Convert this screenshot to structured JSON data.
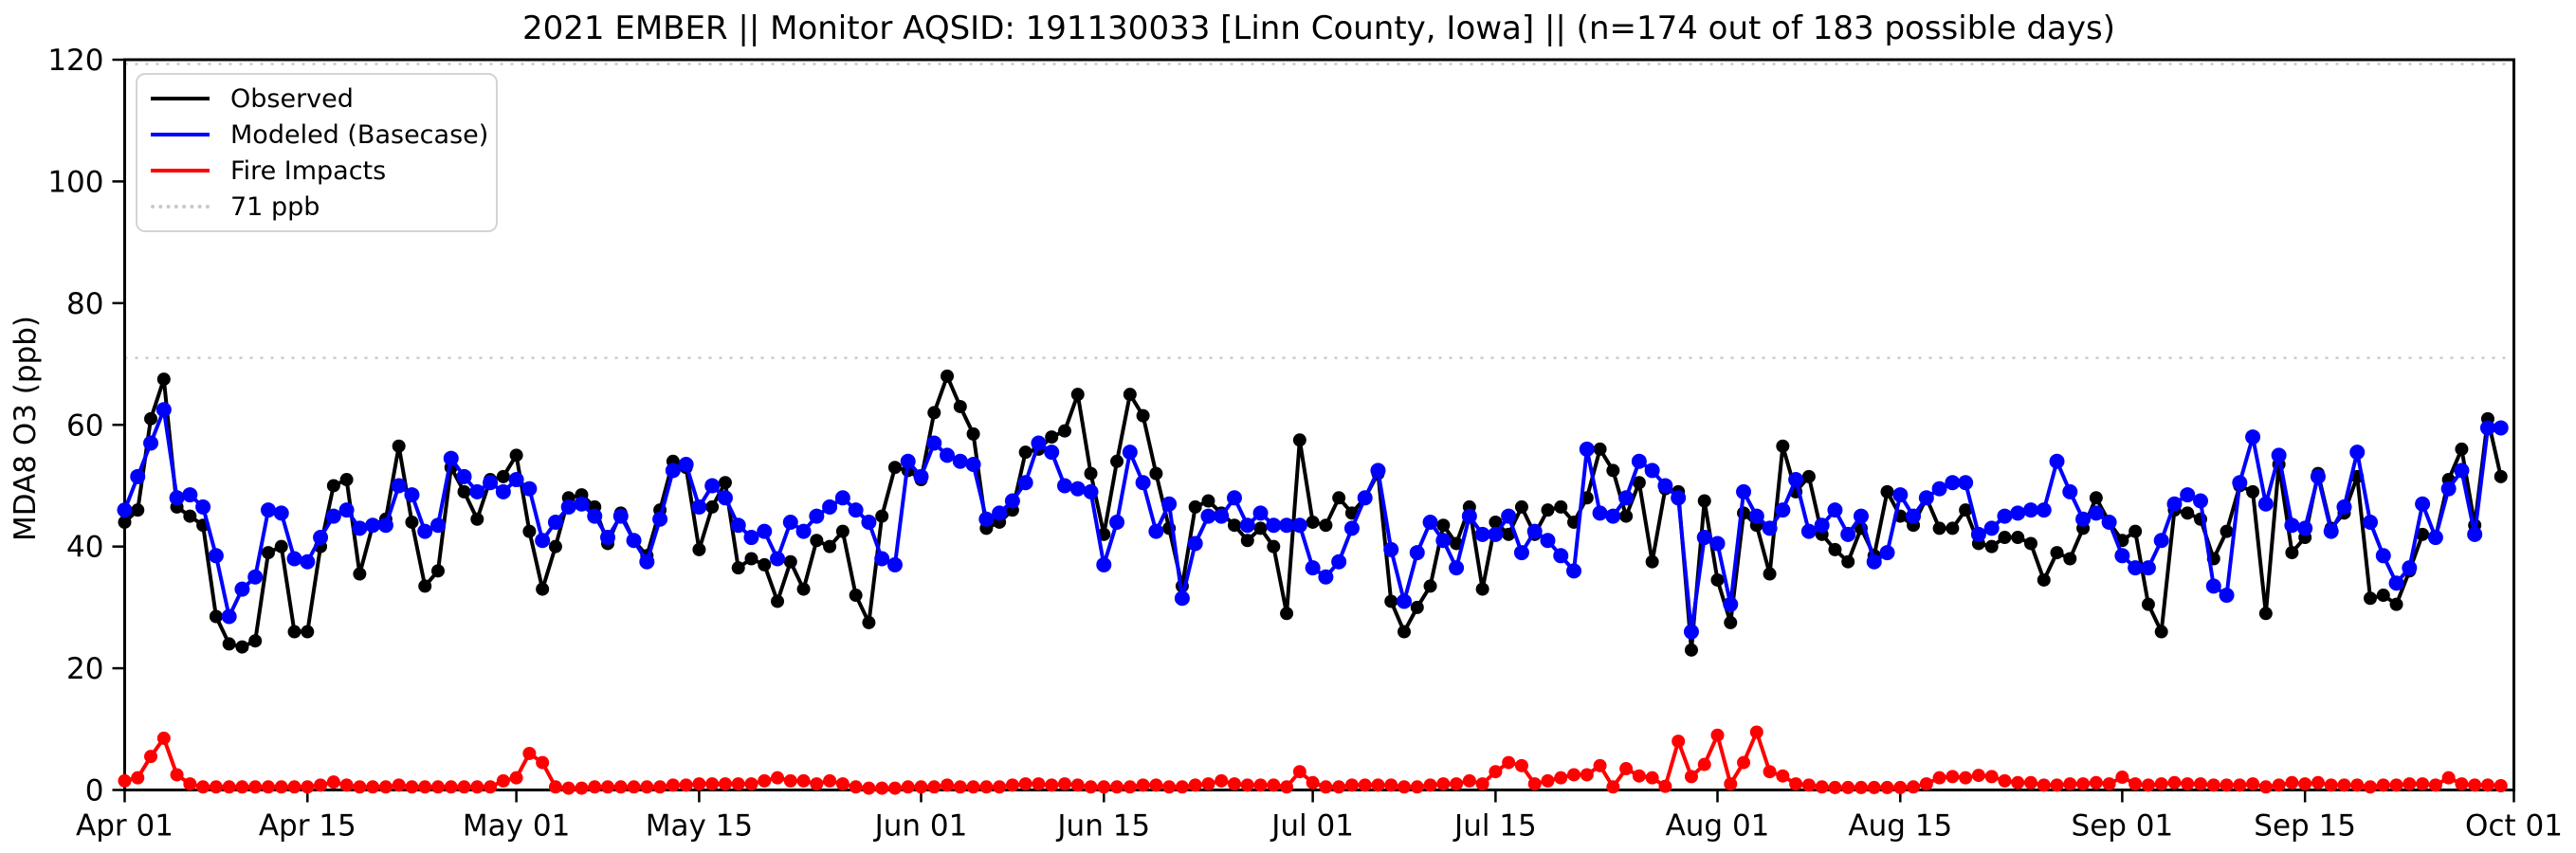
{
  "figure": {
    "title": "2021 EMBER || Monitor AQSID: 191130033 [Linn County, Iowa] || (n=174 out of 183 possible days)",
    "ylabel": "MDA8 O3 (ppb)"
  },
  "legend": {
    "items": [
      {
        "label": "Observed",
        "color": "#000000",
        "line_style": "solid"
      },
      {
        "label": "Modeled (Basecase)",
        "color": "#0000ff",
        "line_style": "solid"
      },
      {
        "label": "Fire Impacts",
        "color": "#ff0000",
        "line_style": "solid"
      },
      {
        "label": "71 ppb",
        "color": "#c9c9c9",
        "line_style": "dotted"
      }
    ]
  },
  "chart_data": {
    "type": "line",
    "title": "2021 EMBER || Monitor AQSID: 191130033 [Linn County, Iowa] || (n=174 out of 183 possible days)",
    "xlabel": "",
    "ylabel": "MDA8 O3 (ppb)",
    "ylim": [
      0,
      120
    ],
    "yticks": [
      0,
      20,
      40,
      60,
      80,
      100,
      120
    ],
    "x_unit": "day index from Apr 01 2021",
    "n_days": 183,
    "grid": false,
    "legend_position": "upper left",
    "xticks": [
      {
        "day": 0,
        "label": "Apr 01"
      },
      {
        "day": 14,
        "label": "Apr 15"
      },
      {
        "day": 30,
        "label": "May 01"
      },
      {
        "day": 44,
        "label": "May 15"
      },
      {
        "day": 61,
        "label": "Jun 01"
      },
      {
        "day": 75,
        "label": "Jun 15"
      },
      {
        "day": 91,
        "label": "Jul 01"
      },
      {
        "day": 105,
        "label": "Jul 15"
      },
      {
        "day": 122,
        "label": "Aug 01"
      },
      {
        "day": 136,
        "label": "Aug 15"
      },
      {
        "day": 153,
        "label": "Sep 01"
      },
      {
        "day": 167,
        "label": "Sep 15"
      },
      {
        "day": 183,
        "label": "Oct 01"
      }
    ],
    "reference_lines": [
      {
        "value": 71,
        "label": "71 ppb",
        "color": "#c9c9c9",
        "style": "dotted"
      },
      {
        "value": 119.3,
        "label": "",
        "color": "#c9c9c9",
        "style": "dotted"
      }
    ],
    "series": [
      {
        "name": "Observed",
        "color": "#000000",
        "marker_radius": 7,
        "values": [
          44,
          46,
          61,
          67.5,
          46.5,
          45,
          43.5,
          28.5,
          24,
          23.5,
          24.5,
          39,
          40,
          26,
          26,
          40,
          50,
          51,
          35.5,
          43.5,
          44.5,
          56.5,
          44,
          33.5,
          36,
          53,
          49,
          44.5,
          51,
          51.5,
          55,
          42.5,
          33,
          40,
          48,
          48.5,
          46.5,
          40.5,
          45.5,
          41,
          38.5,
          46,
          54,
          53,
          39.5,
          46.5,
          50.5,
          36.5,
          38,
          37,
          31,
          37.5,
          33,
          41,
          40,
          42.5,
          32,
          27.5,
          45,
          53,
          52.5,
          51,
          62,
          68,
          63,
          58.5,
          43,
          44,
          46,
          55.5,
          56,
          58,
          59,
          65,
          52,
          42,
          54,
          65,
          61.5,
          52,
          43,
          33.5,
          46.5,
          47.5,
          45.5,
          43.5,
          41,
          43,
          40,
          29,
          57.5,
          44,
          43.5,
          48,
          45.5,
          48,
          52,
          31,
          26,
          30,
          33.5,
          43.5,
          40.5,
          46.5,
          33,
          44,
          42,
          46.5,
          42,
          46,
          46.5,
          44,
          48,
          56,
          52.5,
          45,
          50.5,
          37.5,
          49.5,
          49,
          23,
          47.5,
          34.5,
          27.5,
          45.5,
          43.5,
          35.5,
          56.5,
          49,
          51.5,
          42,
          39.5,
          37.5,
          43,
          38.5,
          49,
          45,
          43.5,
          48,
          43,
          43,
          46,
          40.5,
          40,
          41.5,
          41.5,
          40.5,
          34.5,
          39,
          38,
          43,
          48,
          44,
          41,
          42.5,
          30.5,
          26,
          46,
          45.5,
          44.5,
          38,
          42.5,
          50,
          49,
          29,
          53.5,
          39,
          41.5,
          52,
          43,
          45.5,
          51.5,
          31.5,
          32,
          30.5,
          36,
          42,
          41.5,
          51,
          56,
          43.5,
          61,
          51.5
        ]
      },
      {
        "name": "Modeled (Basecase)",
        "color": "#0000ff",
        "marker_radius": 8,
        "values": [
          46,
          51.5,
          57,
          62.5,
          48,
          48.5,
          46.5,
          38.5,
          28.5,
          33,
          35,
          46,
          45.5,
          38,
          37.5,
          41.5,
          45,
          46,
          43,
          43.5,
          43.5,
          50,
          48.5,
          42.5,
          43.5,
          54.5,
          51.5,
          49,
          50.5,
          49,
          51,
          49.5,
          41,
          44,
          46.5,
          47,
          45,
          41.5,
          45,
          41,
          37.5,
          44.5,
          52.5,
          53.5,
          46.5,
          50,
          48,
          43.5,
          41.5,
          42.5,
          38,
          44,
          42.5,
          45,
          46.5,
          48,
          46,
          44,
          38,
          37,
          54,
          51.5,
          57,
          55,
          54,
          53.5,
          44.5,
          45.5,
          47.5,
          50.5,
          57,
          55.5,
          50,
          49.5,
          49,
          37,
          44,
          55.5,
          50.5,
          42.5,
          47,
          31.5,
          40.5,
          45,
          45,
          48,
          43.5,
          45.5,
          43.5,
          43.5,
          43.5,
          36.5,
          35,
          37.5,
          43,
          48,
          52.5,
          39.5,
          31,
          39,
          44,
          41,
          36.5,
          45,
          42,
          42,
          45,
          39,
          42.5,
          41,
          38.5,
          36,
          56,
          45.5,
          45,
          48,
          54,
          52.5,
          50,
          48,
          26,
          41.5,
          40.5,
          30.5,
          49,
          45,
          43,
          46,
          51,
          42.5,
          43.5,
          46,
          42,
          45,
          37.5,
          39,
          48.5,
          45,
          48,
          49.5,
          50.5,
          50.5,
          42,
          43,
          45,
          45.5,
          46,
          46,
          54,
          49,
          44.5,
          45.5,
          44,
          38.5,
          36.5,
          36.5,
          41,
          47,
          48.5,
          47.5,
          33.5,
          32,
          50.5,
          58,
          47,
          55,
          43.5,
          43,
          51.5,
          42.5,
          46.5,
          55.5,
          44,
          38.5,
          34,
          36.5,
          47,
          41.5,
          49.5,
          52.5,
          42,
          59.5,
          59.5
        ]
      },
      {
        "name": "Fire Impacts",
        "color": "#ff0000",
        "marker_radius": 7,
        "values": [
          1.5,
          2,
          5.5,
          8.5,
          2.5,
          1,
          0.5,
          0.5,
          0.5,
          0.5,
          0.5,
          0.5,
          0.5,
          0.5,
          0.5,
          0.8,
          1.3,
          0.8,
          0.5,
          0.5,
          0.5,
          0.8,
          0.5,
          0.5,
          0.5,
          0.5,
          0.5,
          0.5,
          0.5,
          1.5,
          2,
          6,
          4.5,
          0.5,
          0.3,
          0.3,
          0.5,
          0.5,
          0.5,
          0.5,
          0.5,
          0.5,
          0.8,
          0.8,
          1,
          1,
          1,
          1,
          1,
          1.5,
          2,
          1.5,
          1.5,
          1,
          1.5,
          1,
          0.5,
          0.3,
          0.3,
          0.3,
          0.5,
          0.5,
          0.5,
          0.8,
          0.5,
          0.5,
          0.5,
          0.5,
          0.8,
          1,
          1,
          0.8,
          1,
          0.8,
          0.5,
          0.5,
          0.5,
          0.5,
          0.8,
          0.8,
          0.5,
          0.5,
          0.8,
          1,
          1.5,
          1,
          0.8,
          0.8,
          0.8,
          0.5,
          3,
          1.2,
          0.5,
          0.5,
          0.8,
          0.8,
          0.8,
          0.8,
          0.5,
          0.5,
          0.8,
          1,
          1,
          1.5,
          1,
          3,
          4.5,
          4,
          1,
          1.5,
          2,
          2.5,
          2.5,
          4,
          0.5,
          3.5,
          2.3,
          2,
          0.6,
          8,
          2.2,
          4.2,
          9,
          1,
          4.5,
          9.5,
          3,
          2.3,
          1,
          0.8,
          0.5,
          0.4,
          0.4,
          0.4,
          0.4,
          0.4,
          0.4,
          0.5,
          1,
          2,
          2.2,
          2,
          2.4,
          2.2,
          1.5,
          1.2,
          1.2,
          0.8,
          0.8,
          1,
          1,
          1.2,
          1,
          2.1,
          1,
          0.8,
          1,
          1.2,
          1,
          1,
          0.8,
          0.8,
          0.8,
          1,
          0.5,
          0.8,
          1.2,
          1,
          1.2,
          0.8,
          0.8,
          0.8,
          0.5,
          0.8,
          0.8,
          1,
          1,
          0.8,
          2,
          1,
          0.8,
          0.8,
          0.7
        ]
      }
    ]
  }
}
